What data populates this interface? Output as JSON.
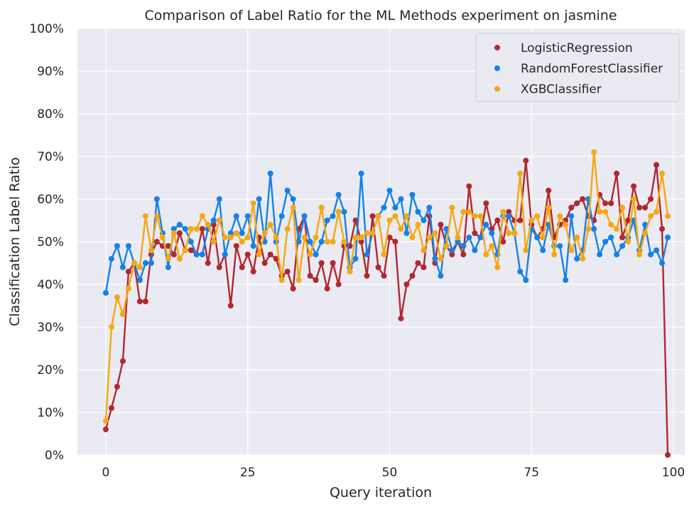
{
  "chart_data": {
    "type": "line",
    "title": "Comparison of Label Ratio for the ML Methods experiment on jasmine",
    "xlabel": "Query iteration",
    "ylabel": "Classification Label Ratio",
    "xlim": [
      -5,
      102
    ],
    "ylim": [
      0,
      100
    ],
    "xticks": [
      0,
      25,
      50,
      75,
      100
    ],
    "xtick_labels": [
      "0",
      "25",
      "50",
      "75",
      "100"
    ],
    "yticks": [
      0,
      10,
      20,
      30,
      40,
      50,
      60,
      70,
      80,
      90,
      100
    ],
    "ytick_labels": [
      "0%",
      "10%",
      "20%",
      "30%",
      "40%",
      "50%",
      "60%",
      "70%",
      "80%",
      "90%",
      "100%"
    ],
    "grid": true,
    "background": "#eaeaf2",
    "legend_position": "top-right",
    "x": [
      0,
      1,
      2,
      3,
      4,
      5,
      6,
      7,
      8,
      9,
      10,
      11,
      12,
      13,
      14,
      15,
      16,
      17,
      18,
      19,
      20,
      21,
      22,
      23,
      24,
      25,
      26,
      27,
      28,
      29,
      30,
      31,
      32,
      33,
      34,
      35,
      36,
      37,
      38,
      39,
      40,
      41,
      42,
      43,
      44,
      45,
      46,
      47,
      48,
      49,
      50,
      51,
      52,
      53,
      54,
      55,
      56,
      57,
      58,
      59,
      60,
      61,
      62,
      63,
      64,
      65,
      66,
      67,
      68,
      69,
      70,
      71,
      72,
      73,
      74,
      75,
      76,
      77,
      78,
      79,
      80,
      81,
      82,
      83,
      84,
      85,
      86,
      87,
      88,
      89,
      90,
      91,
      92,
      93,
      94,
      95,
      96,
      97,
      98,
      99
    ],
    "series": [
      {
        "name": "LogisticRegression",
        "color": "#b2272e",
        "values": [
          6,
          11,
          16,
          22,
          43,
          45,
          36,
          36,
          47,
          50,
          49,
          49,
          47,
          52,
          48,
          48,
          47,
          53,
          45,
          54,
          44,
          47,
          35,
          49,
          44,
          47,
          43,
          51,
          45,
          47,
          46,
          42,
          43,
          39,
          53,
          56,
          42,
          41,
          45,
          39,
          45,
          40,
          49,
          49,
          55,
          50,
          42,
          56,
          44,
          42,
          51,
          50,
          32,
          40,
          42,
          45,
          44,
          56,
          45,
          54,
          49,
          47,
          50,
          47,
          63,
          52,
          51,
          59,
          53,
          55,
          50,
          57,
          55,
          55,
          69,
          54,
          51,
          53,
          62,
          51,
          54,
          55,
          58,
          59,
          60,
          56,
          55,
          61,
          59,
          59,
          66,
          51,
          55,
          63,
          58,
          58,
          60,
          68,
          53,
          0
        ]
      },
      {
        "name": "RandomForestClassifier",
        "color": "#1581e8",
        "values": [
          38,
          46,
          49,
          44,
          49,
          45,
          41,
          45,
          45,
          60,
          52,
          44,
          53,
          54,
          53,
          50,
          47,
          47,
          53,
          55,
          60,
          47,
          52,
          56,
          52,
          56,
          49,
          60,
          50,
          66,
          50,
          56,
          62,
          60,
          50,
          56,
          50,
          47,
          50,
          55,
          56,
          61,
          57,
          44,
          46,
          66,
          47,
          52,
          56,
          58,
          62,
          58,
          60,
          52,
          61,
          57,
          55,
          58,
          46,
          42,
          53,
          48,
          50,
          49,
          51,
          48,
          51,
          54,
          52,
          47,
          56,
          56,
          52,
          43,
          41,
          53,
          51,
          48,
          54,
          49,
          49,
          41,
          56,
          46,
          48,
          60,
          53,
          47,
          50,
          51,
          47,
          49,
          51,
          55,
          48,
          54,
          47,
          48,
          45,
          51
        ]
      },
      {
        "name": "XGBClassifier",
        "color": "#f6a712",
        "values": [
          8,
          30,
          37,
          33,
          39,
          45,
          44,
          56,
          48,
          56,
          51,
          46,
          52,
          46,
          48,
          53,
          53,
          56,
          54,
          50,
          55,
          51,
          51,
          52,
          50,
          51,
          59,
          47,
          52,
          54,
          51,
          41,
          53,
          58,
          41,
          51,
          47,
          51,
          58,
          50,
          50,
          57,
          50,
          43,
          51,
          51,
          52,
          52,
          56,
          47,
          55,
          56,
          53,
          56,
          51,
          54,
          48,
          51,
          52,
          46,
          49,
          58,
          51,
          57,
          57,
          56,
          56,
          47,
          49,
          44,
          57,
          52,
          52,
          66,
          48,
          55,
          56,
          51,
          58,
          47,
          56,
          54,
          48,
          51,
          46,
          53,
          71,
          57,
          57,
          54,
          53,
          58,
          50,
          60,
          47,
          52,
          56,
          57,
          66,
          56
        ]
      }
    ]
  }
}
